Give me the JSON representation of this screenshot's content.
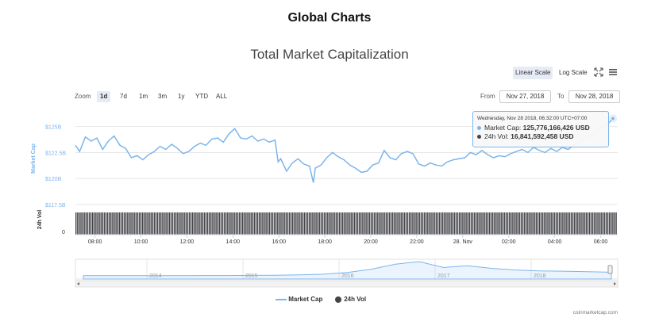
{
  "page": {
    "heading": "Global Charts"
  },
  "chart": {
    "title": "Total Market Capitalization",
    "scale_buttons": [
      {
        "label": "Linear Scale",
        "active": true
      },
      {
        "label": "Log Scale",
        "active": false
      }
    ],
    "zoom_label": "Zoom",
    "zoom_buttons": [
      {
        "label": "1d",
        "active": true
      },
      {
        "label": "7d",
        "active": false
      },
      {
        "label": "1m",
        "active": false
      },
      {
        "label": "3m",
        "active": false
      },
      {
        "label": "1y",
        "active": false
      },
      {
        "label": "YTD",
        "active": false
      },
      {
        "label": "ALL",
        "active": false
      }
    ],
    "range": {
      "from_label": "From",
      "from_value": "Nov 27, 2018",
      "to_label": "To",
      "to_value": "Nov 28, 2018"
    },
    "tooltip": {
      "date": "Wednesday, Nov 28 2018, 06:32:00 UTC+07:00",
      "market_cap_label": "Market Cap:",
      "market_cap_value": "125,776,166,426 USD",
      "vol_label": "24h Vol:",
      "vol_value": "16,841,592,458 USD"
    },
    "legend": {
      "market_cap": "Market Cap",
      "vol": "24h Vol"
    },
    "credit": "coinmarketcap.com",
    "colors": {
      "market_cap": "#7cb5ec",
      "volume": "#434348",
      "navigator": "#7cb5ec"
    }
  },
  "chart_data": {
    "type": "line",
    "series": [
      {
        "name": "Market Cap",
        "unit": "USD billions",
        "x": [
          "07:09",
          "07:20",
          "07:35",
          "07:50",
          "08:05",
          "08:20",
          "08:35",
          "08:50",
          "09:05",
          "09:20",
          "09:35",
          "09:50",
          "10:05",
          "10:20",
          "10:35",
          "10:50",
          "11:05",
          "11:20",
          "11:35",
          "11:50",
          "12:05",
          "12:20",
          "12:35",
          "12:50",
          "13:05",
          "13:20",
          "13:35",
          "13:50",
          "14:05",
          "14:20",
          "14:35",
          "14:50",
          "15:05",
          "15:20",
          "15:35",
          "15:50",
          "15:58",
          "16:05",
          "16:20",
          "16:35",
          "16:50",
          "17:05",
          "17:20",
          "17:30",
          "17:35",
          "17:50",
          "18:05",
          "18:20",
          "18:35",
          "18:50",
          "19:05",
          "19:20",
          "19:35",
          "19:50",
          "20:05",
          "20:20",
          "20:35",
          "20:50",
          "21:05",
          "21:20",
          "21:35",
          "21:50",
          "22:05",
          "22:20",
          "22:35",
          "22:50",
          "23:05",
          "23:20",
          "23:35",
          "23:50",
          "00:05",
          "00:20",
          "00:35",
          "00:50",
          "01:05",
          "01:20",
          "01:35",
          "01:50",
          "02:05",
          "02:20",
          "02:35",
          "02:50",
          "03:05",
          "03:20",
          "03:35",
          "03:50",
          "04:05",
          "04:20",
          "04:35",
          "04:50",
          "05:05",
          "05:20",
          "05:35",
          "05:50",
          "06:05",
          "06:20",
          "06:32"
        ],
        "values": [
          123.2,
          122.6,
          124.0,
          123.6,
          123.9,
          122.8,
          123.6,
          124.1,
          123.2,
          122.9,
          122.0,
          122.2,
          121.8,
          122.3,
          122.6,
          123.1,
          122.8,
          123.3,
          122.9,
          122.4,
          122.6,
          123.1,
          123.4,
          123.2,
          123.8,
          123.9,
          123.5,
          124.3,
          124.8,
          123.9,
          123.8,
          124.1,
          123.6,
          123.8,
          123.5,
          123.7,
          121.6,
          121.9,
          120.7,
          121.5,
          121.9,
          121.4,
          121.2,
          119.6,
          121.0,
          121.3,
          122.0,
          122.5,
          122.1,
          121.8,
          121.3,
          121.0,
          120.6,
          120.7,
          121.3,
          121.5,
          122.7,
          122.0,
          121.8,
          122.4,
          122.6,
          122.4,
          121.4,
          121.2,
          121.5,
          121.3,
          121.2,
          121.6,
          121.8,
          121.9,
          122.0,
          122.5,
          122.3,
          122.7,
          122.3,
          122.0,
          122.2,
          122.1,
          122.4,
          122.6,
          122.8,
          122.5,
          123.0,
          122.7,
          122.5,
          122.9,
          122.6,
          123.0,
          122.8,
          123.2,
          123.6,
          123.9,
          124.2,
          124.6,
          125.0,
          125.3,
          125.78
        ]
      },
      {
        "name": "24h Vol",
        "unit": "USD billions",
        "approx_value": 16.8
      }
    ],
    "y_axis": {
      "ticks": [
        "$117.5B",
        "$120B",
        "$122.5B",
        "$125B"
      ],
      "label": "Market Cap",
      "ylim": [
        117.5,
        126.5
      ]
    },
    "volume_axis": {
      "label": "24h Vol",
      "ticks": [
        "0"
      ]
    },
    "x_axis": {
      "ticks": [
        "08:00",
        "10:00",
        "12:00",
        "14:00",
        "16:00",
        "18:00",
        "20:00",
        "22:00",
        "28. Nov",
        "02:00",
        "04:00",
        "06:00"
      ]
    },
    "navigator": {
      "years": [
        "2014",
        "2015",
        "2016",
        "2017",
        "2018"
      ],
      "values": [
        0.1,
        0.1,
        0.1,
        0.1,
        0.15,
        0.2,
        0.2,
        0.3,
        0.4,
        0.6,
        1.0,
        2.0,
        4.0,
        7.0,
        8.5,
        5.0,
        6.0,
        4.5,
        3.5,
        3.0,
        2.8,
        2.5,
        2.2
      ]
    },
    "legend_position": "bottom-center"
  }
}
